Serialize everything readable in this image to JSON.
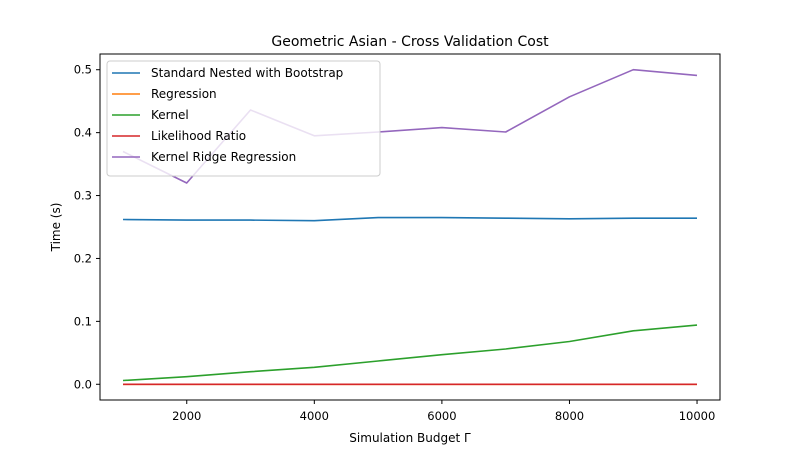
{
  "chart_data": {
    "type": "line",
    "title": "Geometric Asian - Cross Validation Cost",
    "xlabel": "Simulation Budget Γ",
    "ylabel": "Time (s)",
    "xlim": [
      640,
      10360
    ],
    "ylim": [
      -0.025,
      0.525
    ],
    "xticks": [
      2000,
      4000,
      6000,
      8000,
      10000
    ],
    "yticks": [
      0.0,
      0.1,
      0.2,
      0.3,
      0.4,
      0.5
    ],
    "ytick_labels": [
      "0.0",
      "0.1",
      "0.2",
      "0.3",
      "0.4",
      "0.5"
    ],
    "grid": false,
    "legend_position": "upper-left",
    "x": [
      1000,
      2000,
      3000,
      4000,
      5000,
      6000,
      7000,
      8000,
      9000,
      10000
    ],
    "series": [
      {
        "name": "Standard Nested with Bootstrap",
        "color": "#1f77b4",
        "values": [
          0.262,
          0.261,
          0.261,
          0.26,
          0.265,
          0.265,
          0.264,
          0.263,
          0.264,
          0.264
        ]
      },
      {
        "name": "Regression",
        "color": "#ff7f0e",
        "values": [
          0.0,
          0.0,
          0.0,
          0.0,
          0.0,
          0.0,
          0.0,
          0.0,
          0.0,
          0.0
        ]
      },
      {
        "name": "Kernel",
        "color": "#2ca02c",
        "values": [
          0.006,
          0.012,
          0.02,
          0.027,
          0.037,
          0.047,
          0.056,
          0.068,
          0.085,
          0.094
        ]
      },
      {
        "name": "Likelihood Ratio",
        "color": "#d62728",
        "values": [
          0.0,
          0.0,
          0.0,
          0.0,
          0.0,
          0.0,
          0.0,
          0.0,
          0.0,
          0.0
        ]
      },
      {
        "name": "Kernel Ridge Regression",
        "color": "#9467bd",
        "values": [
          0.37,
          0.32,
          0.436,
          0.395,
          0.401,
          0.408,
          0.401,
          0.457,
          0.5,
          0.491
        ]
      }
    ]
  }
}
